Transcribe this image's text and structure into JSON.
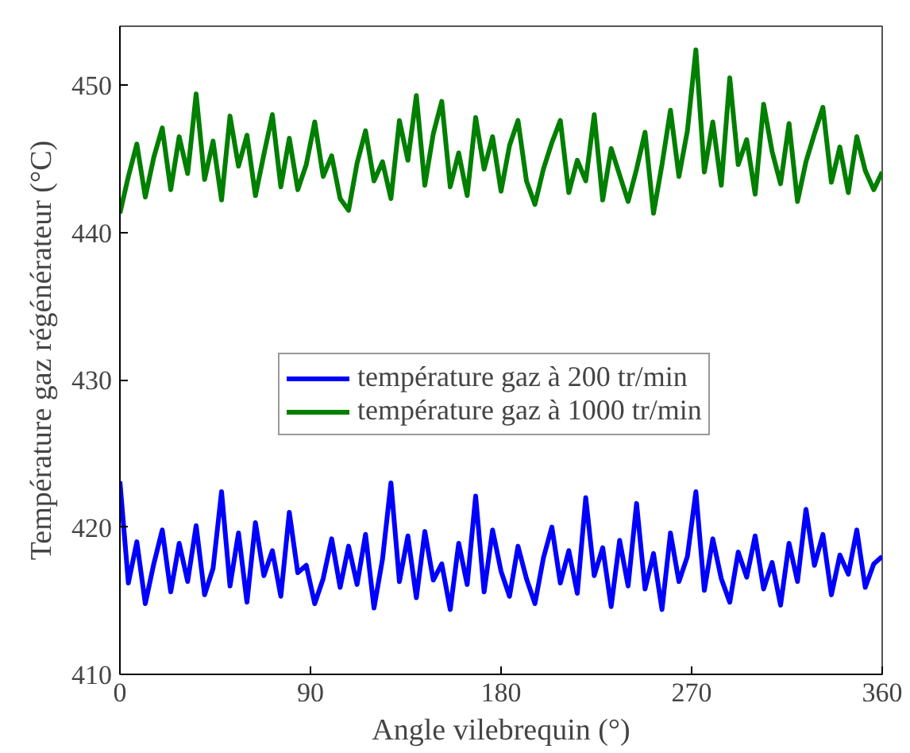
{
  "chart_data": {
    "type": "line",
    "xlabel": "Angle vilebrequin (°)",
    "ylabel": "Température gaz régénérateur (°C)",
    "x": [
      0,
      4,
      8,
      12,
      16,
      20,
      24,
      28,
      32,
      36,
      40,
      44,
      48,
      52,
      56,
      60,
      64,
      68,
      72,
      76,
      80,
      84,
      88,
      92,
      96,
      100,
      104,
      108,
      112,
      116,
      120,
      124,
      128,
      132,
      136,
      140,
      144,
      148,
      152,
      156,
      160,
      164,
      168,
      172,
      176,
      180,
      184,
      188,
      192,
      196,
      200,
      204,
      208,
      212,
      216,
      220,
      224,
      228,
      232,
      236,
      240,
      244,
      248,
      252,
      256,
      260,
      264,
      268,
      272,
      276,
      280,
      284,
      288,
      292,
      296,
      300,
      304,
      308,
      312,
      316,
      320,
      324,
      328,
      332,
      336,
      340,
      344,
      348,
      352,
      356,
      360
    ],
    "series": [
      {
        "name": "température gaz à 200 tr/min",
        "color": "#0000ff",
        "values": [
          423.1,
          416.2,
          419.0,
          414.8,
          417.5,
          419.8,
          415.6,
          418.9,
          416.3,
          420.1,
          415.4,
          417.2,
          422.4,
          416.0,
          419.6,
          414.9,
          420.3,
          416.7,
          418.4,
          415.3,
          421.0,
          416.9,
          417.4,
          414.8,
          416.5,
          419.2,
          415.9,
          418.7,
          416.1,
          419.5,
          414.5,
          417.8,
          423.0,
          416.3,
          419.4,
          415.2,
          419.7,
          416.4,
          417.5,
          414.4,
          418.9,
          416.1,
          422.1,
          415.6,
          419.8,
          417.0,
          415.3,
          418.7,
          416.5,
          414.8,
          417.9,
          420.0,
          416.2,
          418.4,
          415.5,
          422.0,
          416.7,
          418.6,
          414.6,
          419.1,
          416.0,
          421.6,
          415.8,
          418.2,
          414.4,
          419.6,
          416.3,
          418.0,
          422.4,
          415.7,
          419.2,
          416.5,
          414.9,
          418.3,
          416.6,
          419.4,
          415.8,
          417.6,
          414.7,
          418.9,
          416.3,
          421.2,
          417.4,
          419.5,
          415.4,
          418.1,
          416.8,
          419.8,
          415.9,
          417.5,
          418.0
        ]
      },
      {
        "name": "température gaz à 1000 tr/min",
        "color": "#007f00",
        "values": [
          441.3,
          443.8,
          446.0,
          442.4,
          445.1,
          447.1,
          442.9,
          446.5,
          444.0,
          449.4,
          443.6,
          446.2,
          442.2,
          447.9,
          444.5,
          446.6,
          442.5,
          445.3,
          448.0,
          443.1,
          446.4,
          442.9,
          444.6,
          447.5,
          443.8,
          445.2,
          442.3,
          441.5,
          444.7,
          446.9,
          443.5,
          444.8,
          442.3,
          447.6,
          444.9,
          449.3,
          443.2,
          446.7,
          448.9,
          443.1,
          445.4,
          442.5,
          447.8,
          444.3,
          446.5,
          442.8,
          445.9,
          447.6,
          443.5,
          441.9,
          444.3,
          446.1,
          447.6,
          442.7,
          444.9,
          443.5,
          448.0,
          442.2,
          445.7,
          443.9,
          442.1,
          444.3,
          446.8,
          441.3,
          444.6,
          448.3,
          443.8,
          446.9,
          452.4,
          444.1,
          447.5,
          443.2,
          450.5,
          444.6,
          446.3,
          442.6,
          448.7,
          445.5,
          443.3,
          447.4,
          442.1,
          444.8,
          446.7,
          448.5,
          443.4,
          445.8,
          442.7,
          446.5,
          444.2,
          442.9,
          444.1
        ]
      }
    ],
    "xlim": [
      0,
      360
    ],
    "xticks": [
      0,
      90,
      180,
      270,
      360
    ],
    "ylim": [
      410,
      454
    ],
    "yticks": [
      410,
      420,
      430,
      440,
      450
    ],
    "grid": false,
    "legend": "right"
  }
}
